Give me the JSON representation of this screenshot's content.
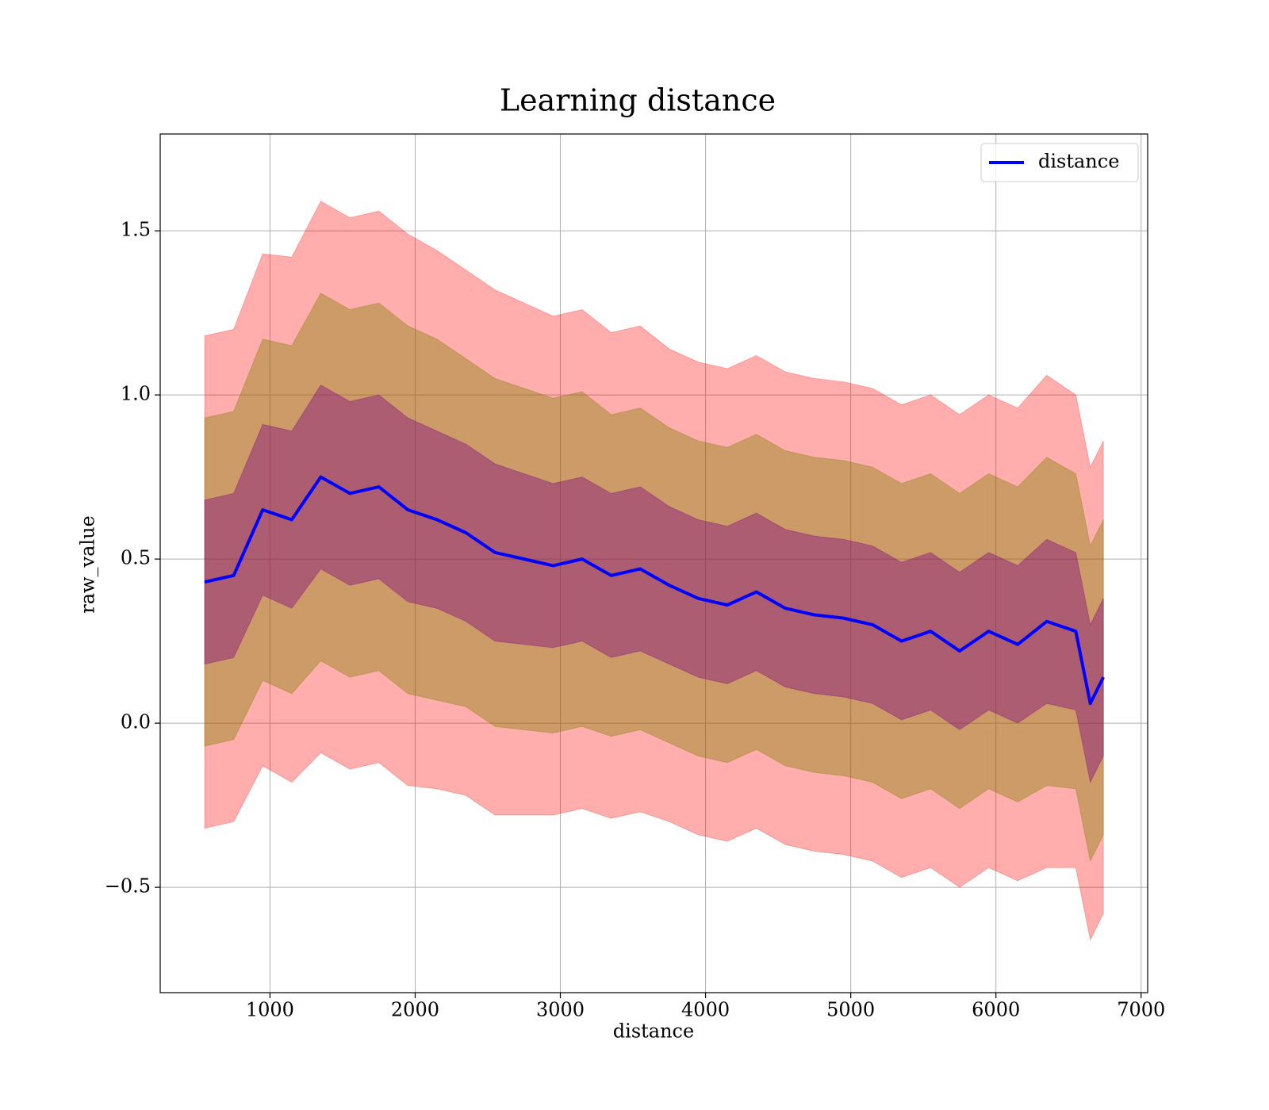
{
  "chart_data": {
    "type": "line",
    "title": "Learning distance",
    "xlabel": "distance",
    "ylabel": "raw_value",
    "x": [
      550,
      750,
      950,
      1150,
      1350,
      1550,
      1750,
      1950,
      2150,
      2350,
      2550,
      2750,
      2950,
      3150,
      3350,
      3550,
      3750,
      3950,
      4150,
      4350,
      4550,
      4750,
      4950,
      5150,
      5350,
      5550,
      5750,
      5950,
      6150,
      6350,
      6550,
      6650,
      6740
    ],
    "series": [
      {
        "name": "distance",
        "color": "#0000ff",
        "values": [
          0.43,
          0.45,
          0.65,
          0.62,
          0.75,
          0.7,
          0.72,
          0.65,
          0.62,
          0.58,
          0.52,
          0.5,
          0.48,
          0.5,
          0.45,
          0.47,
          0.42,
          0.38,
          0.36,
          0.4,
          0.35,
          0.33,
          0.32,
          0.3,
          0.25,
          0.28,
          0.22,
          0.28,
          0.24,
          0.31,
          0.28,
          0.06,
          0.14
        ]
      }
    ],
    "bands": [
      {
        "color": "#ff0000",
        "alpha": 0.32,
        "lower": [
          -0.32,
          -0.3,
          -0.13,
          -0.18,
          -0.09,
          -0.14,
          -0.12,
          -0.19,
          -0.2,
          -0.22,
          -0.28,
          -0.28,
          -0.28,
          -0.26,
          -0.29,
          -0.27,
          -0.3,
          -0.34,
          -0.36,
          -0.32,
          -0.37,
          -0.39,
          -0.4,
          -0.42,
          -0.47,
          -0.44,
          -0.5,
          -0.44,
          -0.48,
          -0.44,
          -0.44,
          -0.66,
          -0.58
        ],
        "upper": [
          1.18,
          1.2,
          1.43,
          1.42,
          1.59,
          1.54,
          1.56,
          1.49,
          1.44,
          1.38,
          1.32,
          1.28,
          1.24,
          1.26,
          1.19,
          1.21,
          1.14,
          1.1,
          1.08,
          1.12,
          1.07,
          1.05,
          1.04,
          1.02,
          0.97,
          1.0,
          0.94,
          1.0,
          0.96,
          1.06,
          1.0,
          0.78,
          0.86
        ]
      },
      {
        "color": "#808000",
        "alpha": 0.4,
        "lower": [
          -0.07,
          -0.05,
          0.13,
          0.09,
          0.19,
          0.14,
          0.16,
          0.09,
          0.07,
          0.05,
          -0.01,
          -0.02,
          -0.03,
          -0.01,
          -0.04,
          -0.02,
          -0.06,
          -0.1,
          -0.12,
          -0.08,
          -0.13,
          -0.15,
          -0.16,
          -0.18,
          -0.23,
          -0.2,
          -0.26,
          -0.2,
          -0.24,
          -0.19,
          -0.2,
          -0.42,
          -0.34
        ],
        "upper": [
          0.93,
          0.95,
          1.17,
          1.15,
          1.31,
          1.26,
          1.28,
          1.21,
          1.17,
          1.11,
          1.05,
          1.02,
          0.99,
          1.01,
          0.94,
          0.96,
          0.9,
          0.86,
          0.84,
          0.88,
          0.83,
          0.81,
          0.8,
          0.78,
          0.73,
          0.76,
          0.7,
          0.76,
          0.72,
          0.81,
          0.76,
          0.54,
          0.62
        ]
      },
      {
        "color": "#800080",
        "alpha": 0.4,
        "lower": [
          0.18,
          0.2,
          0.39,
          0.35,
          0.47,
          0.42,
          0.44,
          0.37,
          0.35,
          0.31,
          0.25,
          0.24,
          0.23,
          0.25,
          0.2,
          0.22,
          0.18,
          0.14,
          0.12,
          0.16,
          0.11,
          0.09,
          0.08,
          0.06,
          0.01,
          0.04,
          -0.02,
          0.04,
          0.0,
          0.06,
          0.04,
          -0.18,
          -0.1
        ],
        "upper": [
          0.68,
          0.7,
          0.91,
          0.89,
          1.03,
          0.98,
          1.0,
          0.93,
          0.89,
          0.85,
          0.79,
          0.76,
          0.73,
          0.75,
          0.7,
          0.72,
          0.66,
          0.62,
          0.6,
          0.64,
          0.59,
          0.57,
          0.56,
          0.54,
          0.49,
          0.52,
          0.46,
          0.52,
          0.48,
          0.56,
          0.52,
          0.3,
          0.38
        ]
      }
    ],
    "xlim": [
      244,
      7045
    ],
    "ylim": [
      -0.821,
      1.795
    ],
    "xticks": [
      1000,
      2000,
      3000,
      4000,
      5000,
      6000,
      7000
    ],
    "yticks": [
      {
        "value": -0.5,
        "label": "−0.5"
      },
      {
        "value": 0,
        "label": "0.0"
      },
      0.5,
      {
        "value": 1.0,
        "label": "1.0"
      },
      1.5
    ],
    "grid": true,
    "legend": "upper right"
  }
}
